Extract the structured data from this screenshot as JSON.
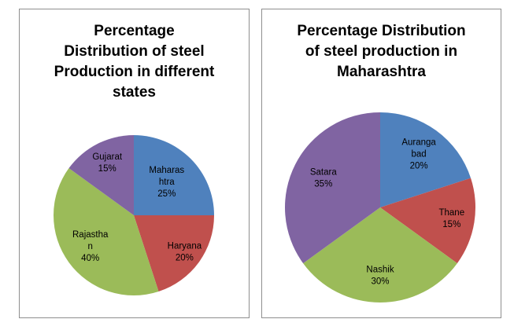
{
  "page": {
    "background": "#ffffff",
    "panel_border_color": "#8e8e8e",
    "title_color": "#000000"
  },
  "chart_data": [
    {
      "type": "pie",
      "title": "Percentage Distribution of steel Production in different states",
      "title_wrapped": "Percentage\nDistribution of steel\nProduction in different\nstates",
      "categories": [
        "Maharashtra",
        "Haryana",
        "Rajasthan",
        "Gujarat"
      ],
      "values": [
        25,
        20,
        40,
        15
      ],
      "value_unit": "%",
      "colors": [
        "#4f81bd",
        "#c0504d",
        "#9bbb59",
        "#8064a2"
      ],
      "slice_labels": [
        [
          "Maharas",
          "htra",
          "25%"
        ],
        [
          "Haryana",
          "20%"
        ],
        [
          "Rajastha",
          "n",
          "40%"
        ],
        [
          "Gujarat",
          "15%"
        ]
      ],
      "label_radius_frac": [
        0.58,
        0.78,
        0.67,
        0.73
      ],
      "label_color": "#000000",
      "start_angle_deg": 0,
      "direction": "clockwise",
      "labels_inside": true,
      "legend": "none"
    },
    {
      "type": "pie",
      "title": "Percentage Distribution of steel production in Maharashtra",
      "title_wrapped": "Percentage Distribution\nof steel production in\nMaharashtra",
      "categories": [
        "Aurangabad",
        "Thane",
        "Nashik",
        "Satara"
      ],
      "values": [
        20,
        15,
        30,
        35
      ],
      "value_unit": "%",
      "colors": [
        "#4f81bd",
        "#c0504d",
        "#9bbb59",
        "#8064a2"
      ],
      "slice_labels": [
        [
          "Auranga",
          "bad",
          "20%"
        ],
        [
          "Thane",
          "15%"
        ],
        [
          "Nashik",
          "30%"
        ],
        [
          "Satara",
          "35%"
        ]
      ],
      "label_radius_frac": [
        0.69,
        0.76,
        0.72,
        0.67
      ],
      "label_color": "#000000",
      "start_angle_deg": 0,
      "direction": "clockwise",
      "labels_inside": true,
      "legend": "none"
    }
  ]
}
